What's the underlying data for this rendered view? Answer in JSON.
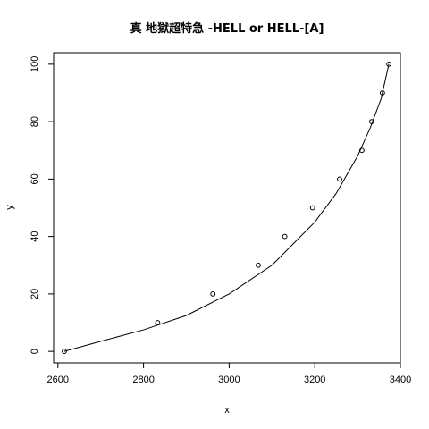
{
  "chart_data": {
    "type": "scatter",
    "title": "真 地獄超特急 -HELL or HELL-[A]",
    "xlabel": "x",
    "ylabel": "y",
    "xlim": [
      2590,
      3400
    ],
    "ylim": [
      -4,
      104
    ],
    "xticks": [
      2600,
      2800,
      3000,
      3200,
      3400
    ],
    "yticks": [
      0,
      20,
      40,
      60,
      80,
      100
    ],
    "xtick_labels": [
      "2600",
      "2800",
      "3000",
      "3200",
      "3400"
    ],
    "ytick_labels": [
      "0",
      "20",
      "40",
      "60",
      "80",
      "100"
    ],
    "points": [
      {
        "x": 2615,
        "y": 0
      },
      {
        "x": 2833,
        "y": 10
      },
      {
        "x": 2962,
        "y": 20
      },
      {
        "x": 3068,
        "y": 30
      },
      {
        "x": 3130,
        "y": 40
      },
      {
        "x": 3195,
        "y": 50
      },
      {
        "x": 3258,
        "y": 60
      },
      {
        "x": 3310,
        "y": 70
      },
      {
        "x": 3333,
        "y": 80
      },
      {
        "x": 3358,
        "y": 90
      },
      {
        "x": 3373,
        "y": 100
      }
    ],
    "fit_curve": [
      {
        "x": 2615,
        "y": 0
      },
      {
        "x": 2700,
        "y": 3.5
      },
      {
        "x": 2800,
        "y": 7.5
      },
      {
        "x": 2900,
        "y": 12.5
      },
      {
        "x": 3000,
        "y": 20
      },
      {
        "x": 3100,
        "y": 30
      },
      {
        "x": 3200,
        "y": 45
      },
      {
        "x": 3250,
        "y": 55
      },
      {
        "x": 3300,
        "y": 68
      },
      {
        "x": 3330,
        "y": 78
      },
      {
        "x": 3355,
        "y": 88
      },
      {
        "x": 3373,
        "y": 100
      }
    ],
    "grid": false,
    "legend": "none"
  }
}
